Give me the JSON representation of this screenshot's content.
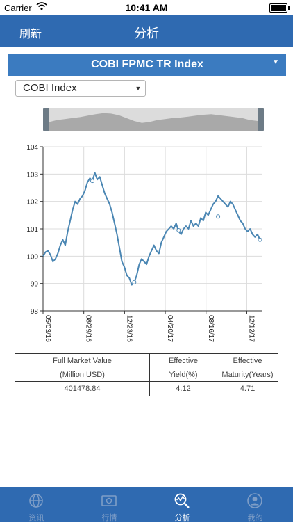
{
  "status_bar": {
    "carrier": "Carrier",
    "time": "10:41 AM"
  },
  "navbar": {
    "refresh_label": "刷新",
    "title": "分析"
  },
  "index_selector": {
    "selected": "COBI FPMC TR Index"
  },
  "sub_selector": {
    "selected": "COBI Index"
  },
  "chart_data": {
    "type": "line",
    "title": "",
    "xlabel": "",
    "ylabel": "",
    "ylim": [
      98,
      104
    ],
    "yticks": [
      "98",
      "99",
      "100",
      "101",
      "102",
      "103",
      "104"
    ],
    "xticks": [
      "05/03/16",
      "08/29/16",
      "12/23/16",
      "04/20/17",
      "08/16/17",
      "12/12/17"
    ],
    "grid": true,
    "series": [
      {
        "color": "#4a86b3",
        "points": [
          [
            0,
            100.0
          ],
          [
            2,
            100.15
          ],
          [
            4,
            100.2
          ],
          [
            6,
            100.05
          ],
          [
            8,
            99.8
          ],
          [
            10,
            99.9
          ],
          [
            12,
            100.1
          ],
          [
            14,
            100.4
          ],
          [
            16,
            100.6
          ],
          [
            18,
            100.4
          ],
          [
            20,
            100.9
          ],
          [
            22,
            101.3
          ],
          [
            24,
            101.7
          ],
          [
            26,
            102.0
          ],
          [
            28,
            101.9
          ],
          [
            30,
            102.1
          ],
          [
            32,
            102.2
          ],
          [
            34,
            102.4
          ],
          [
            36,
            102.7
          ],
          [
            38,
            102.85
          ],
          [
            40,
            102.75
          ],
          [
            42,
            103.05
          ],
          [
            44,
            102.8
          ],
          [
            46,
            102.9
          ],
          [
            48,
            102.6
          ],
          [
            50,
            102.3
          ],
          [
            52,
            102.1
          ],
          [
            54,
            101.9
          ],
          [
            56,
            101.6
          ],
          [
            58,
            101.2
          ],
          [
            60,
            100.8
          ],
          [
            62,
            100.3
          ],
          [
            64,
            99.8
          ],
          [
            66,
            99.6
          ],
          [
            68,
            99.3
          ],
          [
            70,
            99.2
          ],
          [
            72,
            98.95
          ],
          [
            74,
            99.05
          ],
          [
            76,
            99.3
          ],
          [
            78,
            99.7
          ],
          [
            80,
            99.9
          ],
          [
            82,
            99.8
          ],
          [
            84,
            99.7
          ],
          [
            86,
            100.0
          ],
          [
            88,
            100.2
          ],
          [
            90,
            100.4
          ],
          [
            92,
            100.2
          ],
          [
            94,
            100.1
          ],
          [
            96,
            100.5
          ],
          [
            98,
            100.7
          ],
          [
            100,
            100.9
          ],
          [
            102,
            101.0
          ],
          [
            104,
            101.1
          ],
          [
            106,
            101.0
          ],
          [
            108,
            101.2
          ],
          [
            110,
            100.9
          ],
          [
            112,
            100.8
          ],
          [
            114,
            101.0
          ],
          [
            116,
            101.1
          ],
          [
            118,
            101.0
          ],
          [
            120,
            101.3
          ],
          [
            122,
            101.1
          ],
          [
            124,
            101.2
          ],
          [
            126,
            101.1
          ],
          [
            128,
            101.4
          ],
          [
            130,
            101.3
          ],
          [
            132,
            101.6
          ],
          [
            134,
            101.5
          ],
          [
            136,
            101.7
          ],
          [
            138,
            101.9
          ],
          [
            140,
            102.0
          ],
          [
            142,
            102.2
          ],
          [
            144,
            102.1
          ],
          [
            146,
            102.0
          ],
          [
            148,
            101.9
          ],
          [
            150,
            101.8
          ],
          [
            152,
            102.0
          ],
          [
            154,
            101.9
          ],
          [
            156,
            101.7
          ],
          [
            158,
            101.5
          ],
          [
            160,
            101.3
          ],
          [
            162,
            101.2
          ],
          [
            164,
            101.0
          ],
          [
            166,
            100.9
          ],
          [
            168,
            101.0
          ],
          [
            170,
            100.8
          ],
          [
            172,
            100.7
          ],
          [
            174,
            100.8
          ],
          [
            176,
            100.6
          ],
          [
            178,
            100.6
          ]
        ],
        "markers": [
          [
            40,
            102.75
          ],
          [
            74,
            99.05
          ],
          [
            110,
            100.95
          ],
          [
            142,
            101.45
          ],
          [
            176,
            100.6
          ]
        ]
      }
    ],
    "x_range": [
      0,
      178
    ]
  },
  "navigator_data": {
    "profile": [
      0.45,
      0.55,
      0.6,
      0.65,
      0.7,
      0.78,
      0.85,
      0.9,
      0.88,
      0.8,
      0.65,
      0.5,
      0.4,
      0.45,
      0.55,
      0.6,
      0.65,
      0.68,
      0.72,
      0.78,
      0.82,
      0.85,
      0.8,
      0.75,
      0.7,
      0.65,
      0.55,
      0.5
    ]
  },
  "stats_table": {
    "headers": {
      "col1_line1": "Full Market Value",
      "col1_line2": "(Million USD)",
      "col2_line1": "Effective",
      "col2_line2": "Yield(%)",
      "col3_line1": "Effective",
      "col3_line2": "Maturity(Years)"
    },
    "values": {
      "full_market_value": "401478.84",
      "effective_yield": "4.12",
      "effective_maturity": "4.71"
    }
  },
  "tabbar": {
    "active_index": 2,
    "tabs": [
      {
        "label": "资讯",
        "icon": "globe-icon"
      },
      {
        "label": "行情",
        "icon": "banknote-icon"
      },
      {
        "label": "分析",
        "icon": "analysis-magnifier-icon"
      },
      {
        "label": "我的",
        "icon": "user-icon"
      }
    ]
  },
  "colors": {
    "primary": "#2f6ab1",
    "selector": "#3b7bc0",
    "line": "#4a86b3",
    "tab_inactive": "#7f9ec7"
  }
}
